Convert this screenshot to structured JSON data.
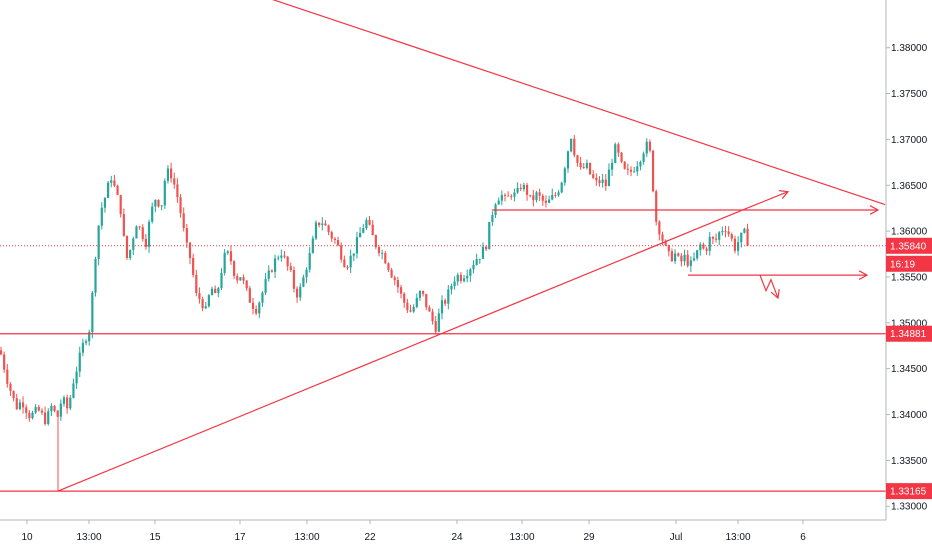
{
  "chart_data": {
    "type": "candlestick",
    "title": "",
    "colors": {
      "up": "#26a69a",
      "down": "#ef5350",
      "drawing": "#f23645",
      "axis_text": "#131722",
      "axis_line": "#b2b5be",
      "tag_background": "#f23645",
      "tag_text": "#ffffff"
    },
    "ylim": [
      1.3285,
      1.3852
    ],
    "xlim": [
      0,
      932
    ],
    "y_ticks": [
      {
        "value": 1.38,
        "label": "1.38000"
      },
      {
        "value": 1.375,
        "label": "1.37500"
      },
      {
        "value": 1.37,
        "label": "1.37000"
      },
      {
        "value": 1.365,
        "label": "1.36500"
      },
      {
        "value": 1.36,
        "label": "1.36000"
      },
      {
        "value": 1.355,
        "label": "1.35500"
      },
      {
        "value": 1.35,
        "label": "1.35000"
      },
      {
        "value": 1.345,
        "label": "1.34500"
      },
      {
        "value": 1.34,
        "label": "1.34000"
      },
      {
        "value": 1.335,
        "label": "1.33500"
      },
      {
        "value": 1.33,
        "label": "1.33000"
      }
    ],
    "x_ticks": [
      {
        "label": "10",
        "x": 27
      },
      {
        "label": "13:00",
        "x": 89
      },
      {
        "label": "15",
        "x": 155
      },
      {
        "label": "17",
        "x": 240
      },
      {
        "label": "13:00",
        "x": 307
      },
      {
        "label": "22",
        "x": 370
      },
      {
        "label": "24",
        "x": 457
      },
      {
        "label": "13:00",
        "x": 522
      },
      {
        "label": "29",
        "x": 589
      },
      {
        "label": "Jul",
        "x": 676
      },
      {
        "label": "13:00",
        "x": 738
      },
      {
        "label": "6",
        "x": 803
      }
    ],
    "current_price": {
      "value": 1.3584,
      "label": "1.35840",
      "countdown": "16:19"
    },
    "level_tags": [
      {
        "value": 1.34881,
        "label": "1.34881"
      },
      {
        "value": 1.33165,
        "label": "1.33165"
      }
    ],
    "drawings": [
      {
        "kind": "trendline",
        "from": [
          0,
          1.3952
        ],
        "to": [
          885,
          1.3629
        ]
      },
      {
        "kind": "trendline",
        "from": [
          58,
          1.33165
        ],
        "to": [
          747,
          1.3625
        ]
      },
      {
        "kind": "arrow",
        "from": [
          747,
          1.3625
        ],
        "to": [
          788,
          1.3643
        ]
      },
      {
        "kind": "hline",
        "value": 1.34881
      },
      {
        "kind": "hline",
        "value": 1.33165
      },
      {
        "kind": "ray_arrow",
        "from": [
          492,
          1.3623
        ],
        "to": [
          878,
          1.3623
        ]
      },
      {
        "kind": "ray_arrow",
        "from": [
          688,
          1.3552
        ],
        "to": [
          867,
          1.3552
        ]
      },
      {
        "kind": "path_arrow",
        "points": [
          [
            760,
            1.3552
          ],
          [
            766,
            1.3535
          ],
          [
            771,
            1.3547
          ],
          [
            778,
            1.3527
          ]
        ]
      }
    ],
    "anchors": [
      {
        "x": 0,
        "v": 1.347
      },
      {
        "x": 8,
        "v": 1.3435
      },
      {
        "x": 16,
        "v": 1.3408
      },
      {
        "x": 22,
        "v": 1.3415
      },
      {
        "x": 30,
        "v": 1.3398
      },
      {
        "x": 38,
        "v": 1.3405
      },
      {
        "x": 46,
        "v": 1.3393
      },
      {
        "x": 52,
        "v": 1.341
      },
      {
        "x": 57,
        "v": 1.3395
      },
      {
        "x": 62,
        "v": 1.3418
      },
      {
        "x": 68,
        "v": 1.3405
      },
      {
        "x": 73,
        "v": 1.3435
      },
      {
        "x": 78,
        "v": 1.3455
      },
      {
        "x": 84,
        "v": 1.348
      },
      {
        "x": 90,
        "v": 1.3495
      },
      {
        "x": 95,
        "v": 1.357
      },
      {
        "x": 100,
        "v": 1.362
      },
      {
        "x": 106,
        "v": 1.364
      },
      {
        "x": 111,
        "v": 1.366
      },
      {
        "x": 116,
        "v": 1.3642
      },
      {
        "x": 121,
        "v": 1.3622
      },
      {
        "x": 126,
        "v": 1.3568
      },
      {
        "x": 131,
        "v": 1.3582
      },
      {
        "x": 136,
        "v": 1.361
      },
      {
        "x": 141,
        "v": 1.36
      },
      {
        "x": 146,
        "v": 1.3588
      },
      {
        "x": 151,
        "v": 1.362
      },
      {
        "x": 156,
        "v": 1.3638
      },
      {
        "x": 161,
        "v": 1.3625
      },
      {
        "x": 166,
        "v": 1.3665
      },
      {
        "x": 171,
        "v": 1.3662
      },
      {
        "x": 176,
        "v": 1.3645
      },
      {
        "x": 181,
        "v": 1.3618
      },
      {
        "x": 186,
        "v": 1.3585
      },
      {
        "x": 191,
        "v": 1.3568
      },
      {
        "x": 196,
        "v": 1.353
      },
      {
        "x": 201,
        "v": 1.3525
      },
      {
        "x": 206,
        "v": 1.3512
      },
      {
        "x": 211,
        "v": 1.354
      },
      {
        "x": 216,
        "v": 1.3525
      },
      {
        "x": 221,
        "v": 1.3555
      },
      {
        "x": 226,
        "v": 1.3578
      },
      {
        "x": 231,
        "v": 1.3568
      },
      {
        "x": 236,
        "v": 1.3548
      },
      {
        "x": 241,
        "v": 1.3552
      },
      {
        "x": 246,
        "v": 1.3535
      },
      {
        "x": 251,
        "v": 1.3522
      },
      {
        "x": 256,
        "v": 1.3515
      },
      {
        "x": 261,
        "v": 1.3528
      },
      {
        "x": 266,
        "v": 1.3545
      },
      {
        "x": 271,
        "v": 1.3558
      },
      {
        "x": 276,
        "v": 1.357
      },
      {
        "x": 281,
        "v": 1.3578
      },
      {
        "x": 286,
        "v": 1.3565
      },
      {
        "x": 291,
        "v": 1.3552
      },
      {
        "x": 296,
        "v": 1.353
      },
      {
        "x": 301,
        "v": 1.3538
      },
      {
        "x": 306,
        "v": 1.356
      },
      {
        "x": 311,
        "v": 1.3578
      },
      {
        "x": 316,
        "v": 1.3605
      },
      {
        "x": 321,
        "v": 1.3612
      },
      {
        "x": 326,
        "v": 1.3604
      },
      {
        "x": 331,
        "v": 1.3595
      },
      {
        "x": 336,
        "v": 1.3588
      },
      {
        "x": 341,
        "v": 1.3575
      },
      {
        "x": 346,
        "v": 1.3562
      },
      {
        "x": 351,
        "v": 1.3572
      },
      {
        "x": 356,
        "v": 1.3585
      },
      {
        "x": 361,
        "v": 1.36
      },
      {
        "x": 366,
        "v": 1.3612
      },
      {
        "x": 371,
        "v": 1.3598
      },
      {
        "x": 376,
        "v": 1.3585
      },
      {
        "x": 381,
        "v": 1.3578
      },
      {
        "x": 386,
        "v": 1.3568
      },
      {
        "x": 391,
        "v": 1.3555
      },
      {
        "x": 396,
        "v": 1.3545
      },
      {
        "x": 401,
        "v": 1.353
      },
      {
        "x": 406,
        "v": 1.3518
      },
      {
        "x": 411,
        "v": 1.3512
      },
      {
        "x": 416,
        "v": 1.3522
      },
      {
        "x": 421,
        "v": 1.3535
      },
      {
        "x": 426,
        "v": 1.352
      },
      {
        "x": 431,
        "v": 1.3505
      },
      {
        "x": 436,
        "v": 1.3495
      },
      {
        "x": 441,
        "v": 1.3518
      },
      {
        "x": 446,
        "v": 1.3525
      },
      {
        "x": 451,
        "v": 1.354
      },
      {
        "x": 456,
        "v": 1.3552
      },
      {
        "x": 461,
        "v": 1.355
      },
      {
        "x": 466,
        "v": 1.3555
      },
      {
        "x": 471,
        "v": 1.3562
      },
      {
        "x": 476,
        "v": 1.357
      },
      {
        "x": 481,
        "v": 1.3575
      },
      {
        "x": 486,
        "v": 1.3585
      },
      {
        "x": 491,
        "v": 1.3615
      },
      {
        "x": 496,
        "v": 1.3635
      },
      {
        "x": 501,
        "v": 1.364
      },
      {
        "x": 506,
        "v": 1.3632
      },
      {
        "x": 511,
        "v": 1.3642
      },
      {
        "x": 516,
        "v": 1.3638
      },
      {
        "x": 521,
        "v": 1.365
      },
      {
        "x": 526,
        "v": 1.3645
      },
      {
        "x": 531,
        "v": 1.3632
      },
      {
        "x": 536,
        "v": 1.364
      },
      {
        "x": 541,
        "v": 1.3635
      },
      {
        "x": 546,
        "v": 1.3628
      },
      {
        "x": 551,
        "v": 1.3635
      },
      {
        "x": 556,
        "v": 1.364
      },
      {
        "x": 561,
        "v": 1.3652
      },
      {
        "x": 566,
        "v": 1.3678
      },
      {
        "x": 571,
        "v": 1.3705
      },
      {
        "x": 576,
        "v": 1.3678
      },
      {
        "x": 581,
        "v": 1.3665
      },
      {
        "x": 586,
        "v": 1.3672
      },
      {
        "x": 591,
        "v": 1.366
      },
      {
        "x": 596,
        "v": 1.3652
      },
      {
        "x": 601,
        "v": 1.3655
      },
      {
        "x": 606,
        "v": 1.365
      },
      {
        "x": 611,
        "v": 1.3675
      },
      {
        "x": 616,
        "v": 1.3692
      },
      {
        "x": 621,
        "v": 1.3672
      },
      {
        "x": 626,
        "v": 1.3662
      },
      {
        "x": 631,
        "v": 1.3665
      },
      {
        "x": 636,
        "v": 1.3672
      },
      {
        "x": 641,
        "v": 1.3682
      },
      {
        "x": 646,
        "v": 1.3695
      },
      {
        "x": 651,
        "v": 1.3682
      },
      {
        "x": 655,
        "v": 1.3615
      },
      {
        "x": 660,
        "v": 1.36
      },
      {
        "x": 665,
        "v": 1.3582
      },
      {
        "x": 670,
        "v": 1.357
      },
      {
        "x": 675,
        "v": 1.3575
      },
      {
        "x": 680,
        "v": 1.3565
      },
      {
        "x": 685,
        "v": 1.3572
      },
      {
        "x": 690,
        "v": 1.3562
      },
      {
        "x": 695,
        "v": 1.357
      },
      {
        "x": 700,
        "v": 1.3585
      },
      {
        "x": 705,
        "v": 1.3578
      },
      {
        "x": 710,
        "v": 1.3592
      },
      {
        "x": 715,
        "v": 1.3588
      },
      {
        "x": 720,
        "v": 1.36
      },
      {
        "x": 725,
        "v": 1.3605
      },
      {
        "x": 730,
        "v": 1.3595
      },
      {
        "x": 735,
        "v": 1.3582
      },
      {
        "x": 740,
        "v": 1.3592
      },
      {
        "x": 745,
        "v": 1.3598
      },
      {
        "x": 750,
        "v": 1.3584
      }
    ]
  }
}
